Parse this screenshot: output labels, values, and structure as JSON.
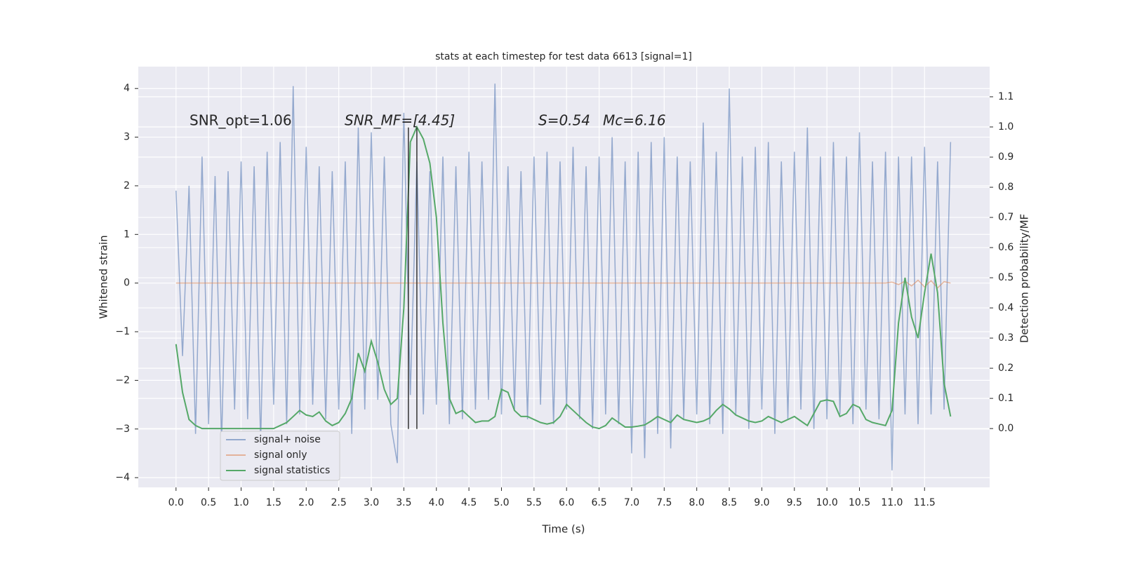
{
  "chart_data": {
    "type": "line",
    "title": "stats at each timestep for test data 6613 [signal=1]",
    "x_label": "Time (s)",
    "y_label": "Whitened strain",
    "y2_label": "Detection probability/MF",
    "annotations": [
      "SNR_opt=1.06",
      "SNR_MF=[4.45]",
      "S=0.54",
      "Mc=6.16"
    ],
    "xlim": [
      -0.58,
      12.5
    ],
    "ylim": [
      -4.2,
      4.45
    ],
    "y2lim": [
      -0.195,
      1.2
    ],
    "xticks": [
      {
        "value": 0,
        "label": "0.0"
      },
      {
        "value": 0.5,
        "label": "0.5"
      },
      {
        "value": 1,
        "label": "1.0"
      },
      {
        "value": 1.5,
        "label": "1.5"
      },
      {
        "value": 2,
        "label": "2.0"
      },
      {
        "value": 2.5,
        "label": "2.5"
      },
      {
        "value": 3,
        "label": "3.0"
      },
      {
        "value": 3.5,
        "label": "3.5"
      },
      {
        "value": 4,
        "label": "4.0"
      },
      {
        "value": 4.5,
        "label": "4.5"
      },
      {
        "value": 5,
        "label": "5.0"
      },
      {
        "value": 5.5,
        "label": "5.5"
      },
      {
        "value": 6,
        "label": "6.0"
      },
      {
        "value": 6.5,
        "label": "6.5"
      },
      {
        "value": 7,
        "label": "7.0"
      },
      {
        "value": 7.5,
        "label": "7.5"
      },
      {
        "value": 8,
        "label": "8.0"
      },
      {
        "value": 8.5,
        "label": "8.5"
      },
      {
        "value": 9,
        "label": "9.0"
      },
      {
        "value": 9.5,
        "label": "9.5"
      },
      {
        "value": 10,
        "label": "10.0"
      },
      {
        "value": 10.5,
        "label": "10.5"
      },
      {
        "value": 11,
        "label": "11.0"
      },
      {
        "value": 11.5,
        "label": "11.5"
      }
    ],
    "yticks": [
      {
        "value": -4,
        "label": "−4"
      },
      {
        "value": -3,
        "label": "−3"
      },
      {
        "value": -2,
        "label": "−2"
      },
      {
        "value": -1,
        "label": "−1"
      },
      0,
      1,
      2,
      3,
      4
    ],
    "y2ticks": [
      {
        "value": 0,
        "label": "0.0"
      },
      {
        "value": 0.1,
        "label": "0.1"
      },
      {
        "value": 0.2,
        "label": "0.2"
      },
      {
        "value": 0.3,
        "label": "0.3"
      },
      {
        "value": 0.4,
        "label": "0.4"
      },
      {
        "value": 0.5,
        "label": "0.5"
      },
      {
        "value": 0.6,
        "label": "0.6"
      },
      {
        "value": 0.7,
        "label": "0.7"
      },
      {
        "value": 0.8,
        "label": "0.8"
      },
      {
        "value": 0.9,
        "label": "0.9"
      },
      {
        "value": 1,
        "label": "1.0"
      },
      {
        "value": 1.1,
        "label": "1.1"
      }
    ],
    "grid": true,
    "legend": "lower left",
    "x": [
      0,
      0.1,
      0.2,
      0.3,
      0.4,
      0.5,
      0.6,
      0.7,
      0.8,
      0.9,
      1,
      1.1,
      1.2,
      1.3,
      1.4,
      1.5,
      1.6,
      1.7,
      1.8,
      1.9,
      2,
      2.1,
      2.2,
      2.3,
      2.4,
      2.5,
      2.6,
      2.7,
      2.8,
      2.9,
      3,
      3.1,
      3.2,
      3.3,
      3.4,
      3.5,
      3.6,
      3.7,
      3.8,
      3.9,
      4,
      4.1,
      4.2,
      4.3,
      4.4,
      4.5,
      4.6,
      4.7,
      4.8,
      4.9,
      5,
      5.1,
      5.2,
      5.3,
      5.4,
      5.5,
      5.6,
      5.7,
      5.8,
      5.9,
      6,
      6.1,
      6.2,
      6.3,
      6.4,
      6.5,
      6.6,
      6.7,
      6.8,
      6.9,
      7,
      7.1,
      7.2,
      7.3,
      7.4,
      7.5,
      7.6,
      7.7,
      7.8,
      7.9,
      8,
      8.1,
      8.2,
      8.3,
      8.4,
      8.5,
      8.6,
      8.7,
      8.8,
      8.9,
      9,
      9.1,
      9.2,
      9.3,
      9.4,
      9.5,
      9.6,
      9.7,
      9.8,
      9.9,
      10,
      10.1,
      10.2,
      10.3,
      10.4,
      10.5,
      10.6,
      10.7,
      10.8,
      10.9,
      11,
      11.1,
      11.2,
      11.3,
      11.4,
      11.5,
      11.6,
      11.7,
      11.8,
      11.9
    ],
    "series": [
      {
        "name": "signal+ noise",
        "color": "#4c72b0",
        "values": [
          1.9,
          -1.5,
          2.0,
          -3.1,
          2.6,
          -2.9,
          2.2,
          -3.3,
          2.3,
          -2.6,
          2.5,
          -2.8,
          2.4,
          -3.3,
          2.7,
          -2.5,
          2.9,
          -2.9,
          4.05,
          -2.7,
          2.8,
          -2.5,
          2.4,
          -2.8,
          2.3,
          -2.6,
          2.5,
          -3.1,
          3.2,
          -2.6,
          3.1,
          -2.4,
          2.6,
          -2.9,
          -3.7,
          3.5,
          -2.3,
          2.5,
          -2.7,
          2.3,
          -2.5,
          2.6,
          -2.9,
          2.4,
          -2.8,
          2.7,
          -2.6,
          2.5,
          -2.4,
          4.1,
          -2.7,
          2.4,
          -2.6,
          2.3,
          -2.8,
          2.6,
          -2.5,
          2.7,
          -2.9,
          2.5,
          -2.6,
          2.8,
          -2.8,
          2.4,
          -3.0,
          2.6,
          -2.7,
          3.0,
          -2.9,
          2.5,
          -3.5,
          2.7,
          -3.6,
          2.9,
          -3.1,
          3.0,
          -3.4,
          2.6,
          -2.8,
          2.5,
          -2.7,
          3.3,
          -2.9,
          2.7,
          -3.1,
          4.0,
          -2.7,
          2.6,
          -3.0,
          2.8,
          -2.6,
          2.9,
          -3.1,
          2.5,
          -2.8,
          2.7,
          -2.6,
          3.2,
          -3.0,
          2.6,
          -2.8,
          2.9,
          -2.7,
          2.6,
          -2.9,
          3.1,
          -2.6,
          2.5,
          -2.8,
          2.7,
          -3.85,
          2.6,
          -2.7,
          2.6,
          -2.9,
          2.8,
          -2.7,
          2.5,
          -2.6,
          2.9
        ]
      },
      {
        "name": "signal only",
        "color": "#dd8452",
        "values": [
          0,
          0,
          0,
          0,
          0,
          0,
          0,
          0,
          0,
          0,
          0,
          0,
          0,
          0,
          0,
          0,
          0,
          0,
          0,
          0,
          0,
          0,
          0,
          0,
          0,
          0,
          0,
          0,
          0,
          0,
          0,
          0,
          0,
          0,
          0,
          0,
          0,
          0,
          0,
          0,
          0,
          0,
          0,
          0,
          0,
          0,
          0,
          0,
          0,
          0,
          0,
          0,
          0,
          0,
          0,
          0,
          0,
          0,
          0,
          0,
          0,
          0,
          0,
          0,
          0,
          0,
          0,
          0,
          0,
          0,
          0,
          0,
          0,
          0,
          0,
          0,
          0,
          0,
          0,
          0,
          0,
          0,
          0,
          0,
          0,
          0,
          0,
          0,
          0,
          0,
          0,
          0,
          0,
          0,
          0,
          0,
          0,
          0,
          0,
          0,
          0,
          0,
          0,
          0,
          0,
          0,
          0,
          0,
          0,
          0,
          0.02,
          -0.03,
          0.04,
          -0.06,
          0.06,
          -0.08,
          0.05,
          -0.1,
          0.03,
          0
        ]
      },
      {
        "name": "signal statistics",
        "color": "#55a868",
        "axis": "y2",
        "values": [
          0.28,
          0.12,
          0.03,
          0.01,
          0,
          0,
          0,
          0,
          0,
          0,
          0,
          0,
          0,
          0,
          0,
          0,
          0.01,
          0.02,
          0.04,
          0.06,
          0.045,
          0.04,
          0.055,
          0.025,
          0.01,
          0.02,
          0.05,
          0.1,
          0.25,
          0.19,
          0.29,
          0.22,
          0.13,
          0.08,
          0.1,
          0.4,
          0.95,
          1.0,
          0.96,
          0.88,
          0.7,
          0.35,
          0.1,
          0.05,
          0.06,
          0.04,
          0.02,
          0.025,
          0.025,
          0.04,
          0.13,
          0.12,
          0.06,
          0.04,
          0.04,
          0.03,
          0.02,
          0.015,
          0.02,
          0.04,
          0.08,
          0.06,
          0.04,
          0.02,
          0.005,
          0,
          0.01,
          0.035,
          0.02,
          0.005,
          0.005,
          0.008,
          0.012,
          0.025,
          0.04,
          0.03,
          0.02,
          0.045,
          0.03,
          0.025,
          0.02,
          0.025,
          0.035,
          0.06,
          0.08,
          0.065,
          0.045,
          0.035,
          0.025,
          0.02,
          0.025,
          0.04,
          0.03,
          0.02,
          0.03,
          0.04,
          0.025,
          0.01,
          0.05,
          0.09,
          0.095,
          0.09,
          0.04,
          0.05,
          0.08,
          0.07,
          0.03,
          0.02,
          0.015,
          0.01,
          0.06,
          0.35,
          0.5,
          0.37,
          0.3,
          0.45,
          0.58,
          0.45,
          0.15,
          0.04
        ]
      }
    ],
    "vlines": [
      {
        "x": 3.57,
        "ymin": -3.0,
        "ymax": 3.2,
        "color": "#333333"
      },
      {
        "x": 3.7,
        "ymin": -3.0,
        "ymax": 3.2,
        "color": "#333333"
      }
    ]
  }
}
